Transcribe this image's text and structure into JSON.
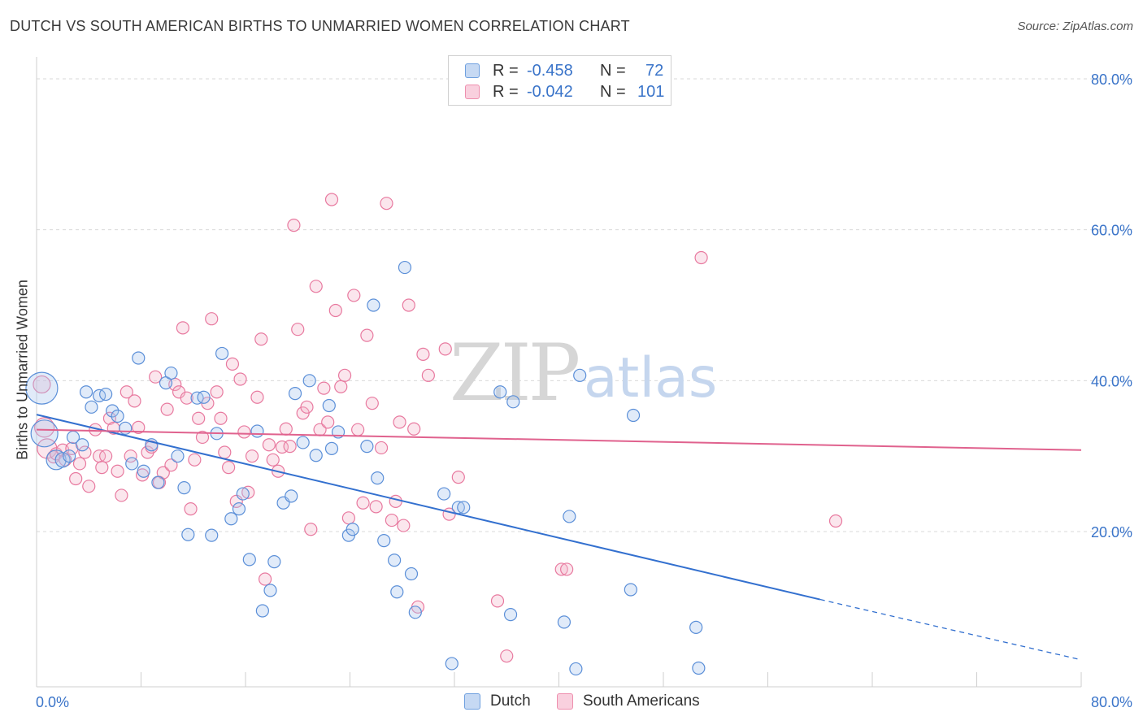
{
  "title": "DUTCH VS SOUTH AMERICAN BIRTHS TO UNMARRIED WOMEN CORRELATION CHART",
  "source": "Source: ZipAtlas.com",
  "watermark": {
    "zip": "ZIP",
    "atlas": "atlas"
  },
  "legend_top": {
    "rows": [
      {
        "r_label": "R =",
        "r_value": "-0.458",
        "n_label": "N =",
        "n_value": "72",
        "color": "#6fa0df"
      },
      {
        "r_label": "R =",
        "r_value": "-0.042",
        "n_label": "N =",
        "n_value": "101",
        "color": "#ee8fae"
      }
    ]
  },
  "legend_bottom": [
    {
      "label": "Dutch",
      "color": "#6fa0df"
    },
    {
      "label": "South Americans",
      "color": "#ee8fae"
    }
  ],
  "colors": {
    "blue": "#4a86d8",
    "pink": "#e8729a",
    "blue_line": "#3370cf",
    "pink_line": "#e0628e",
    "axis_text": "#3a74c9"
  },
  "chart_data": {
    "type": "scatter",
    "title": "DUTCH VS SOUTH AMERICAN BIRTHS TO UNMARRIED WOMEN CORRELATION CHART",
    "xlabel": "",
    "ylabel": "Births to Unmarried Women",
    "xlim": [
      0,
      80
    ],
    "ylim": [
      0,
      82
    ],
    "x_tick_labels": [
      "0.0%",
      "80.0%"
    ],
    "y_ticks": [
      20,
      40,
      60,
      80
    ],
    "y_tick_labels": [
      "20.0%",
      "40.0%",
      "60.0%",
      "80.0%"
    ],
    "grid": true,
    "legend_placement": "top-center",
    "series": [
      {
        "name": "Dutch",
        "color": "#6fa0df",
        "trend": {
          "x0": 0,
          "y0": 35.5,
          "x1": 60,
          "y1": 11.0,
          "dash_to_x": 80,
          "dash_to_y": 3.0
        },
        "points": [
          [
            0.4,
            39.0,
            2.6
          ],
          [
            0.6,
            33.0,
            2.2
          ],
          [
            1.5,
            29.5,
            1.6
          ],
          [
            2.0,
            29.5,
            1.2
          ],
          [
            2.5,
            30.0,
            1.0
          ],
          [
            2.8,
            32.5,
            1.0
          ],
          [
            3.5,
            31.5,
            1.0
          ],
          [
            3.8,
            38.5,
            1.0
          ],
          [
            4.2,
            36.5,
            1.0
          ],
          [
            4.8,
            38.0,
            1.0
          ],
          [
            5.3,
            38.2,
            1.0
          ],
          [
            5.8,
            36.0,
            1.0
          ],
          [
            6.2,
            35.3,
            1.0
          ],
          [
            6.8,
            33.7,
            1.0
          ],
          [
            7.3,
            29.0,
            1.0
          ],
          [
            7.8,
            43.0,
            1.0
          ],
          [
            8.2,
            28.0,
            1.0
          ],
          [
            8.8,
            31.5,
            1.0
          ],
          [
            9.3,
            26.5,
            1.0
          ],
          [
            9.9,
            39.7,
            1.0
          ],
          [
            10.3,
            41.0,
            1.0
          ],
          [
            10.8,
            30.0,
            1.0
          ],
          [
            11.3,
            25.8,
            1.0
          ],
          [
            11.6,
            19.6,
            1.0
          ],
          [
            12.3,
            37.7,
            1.0
          ],
          [
            12.8,
            37.8,
            1.0
          ],
          [
            13.4,
            19.5,
            1.0
          ],
          [
            13.8,
            33.0,
            1.0
          ],
          [
            14.2,
            43.6,
            1.0
          ],
          [
            14.9,
            21.7,
            1.0
          ],
          [
            15.5,
            23.0,
            1.0
          ],
          [
            15.8,
            25.0,
            1.0
          ],
          [
            16.3,
            16.3,
            1.0
          ],
          [
            16.9,
            33.3,
            1.0
          ],
          [
            17.3,
            9.5,
            1.0
          ],
          [
            17.9,
            12.2,
            1.0
          ],
          [
            18.2,
            16.0,
            1.0
          ],
          [
            18.9,
            23.8,
            1.0
          ],
          [
            19.5,
            24.7,
            1.0
          ],
          [
            19.8,
            38.3,
            1.0
          ],
          [
            20.4,
            31.8,
            1.0
          ],
          [
            20.9,
            40.0,
            1.0
          ],
          [
            21.4,
            30.1,
            1.0
          ],
          [
            22.4,
            36.7,
            1.0
          ],
          [
            22.6,
            31.0,
            1.0
          ],
          [
            23.1,
            33.2,
            1.0
          ],
          [
            23.9,
            19.5,
            1.0
          ],
          [
            24.2,
            20.3,
            1.0
          ],
          [
            25.3,
            31.3,
            1.0
          ],
          [
            25.8,
            50.0,
            1.0
          ],
          [
            26.1,
            27.1,
            1.0
          ],
          [
            26.6,
            18.8,
            1.0
          ],
          [
            27.4,
            16.2,
            1.0
          ],
          [
            27.6,
            12.0,
            1.0
          ],
          [
            28.2,
            55.0,
            1.0
          ],
          [
            28.7,
            14.4,
            1.0
          ],
          [
            29.0,
            9.3,
            1.0
          ],
          [
            31.2,
            25.0,
            1.0
          ],
          [
            31.8,
            2.5,
            1.0
          ],
          [
            32.3,
            23.2,
            1.0
          ],
          [
            32.7,
            23.2,
            1.0
          ],
          [
            35.5,
            38.5,
            1.0
          ],
          [
            36.3,
            9.0,
            1.0
          ],
          [
            36.5,
            37.2,
            1.0
          ],
          [
            40.4,
            8.0,
            1.0
          ],
          [
            40.8,
            22.0,
            1.0
          ],
          [
            41.3,
            1.8,
            1.0
          ],
          [
            41.6,
            40.7,
            1.0
          ],
          [
            45.5,
            12.3,
            1.0
          ],
          [
            45.7,
            35.4,
            1.0
          ],
          [
            50.7,
            1.9,
            1.0
          ],
          [
            50.5,
            7.3,
            1.0
          ]
        ]
      },
      {
        "name": "South Americans",
        "color": "#ee8fae",
        "trend": {
          "x0": 0,
          "y0": 33.5,
          "x1": 80,
          "y1": 30.8
        },
        "points": [
          [
            0.4,
            39.5,
            1.4
          ],
          [
            0.6,
            33.8,
            1.6
          ],
          [
            0.8,
            31.0,
            1.6
          ],
          [
            1.3,
            29.9,
            1.0
          ],
          [
            1.5,
            30.3,
            1.0
          ],
          [
            2.0,
            30.8,
            1.0
          ],
          [
            2.2,
            29.5,
            1.0
          ],
          [
            2.7,
            31.0,
            1.0
          ],
          [
            3.0,
            27.0,
            1.0
          ],
          [
            3.3,
            29.0,
            1.0
          ],
          [
            3.7,
            30.5,
            1.0
          ],
          [
            4.0,
            26.0,
            1.0
          ],
          [
            4.5,
            33.5,
            1.0
          ],
          [
            4.8,
            30.0,
            1.0
          ],
          [
            5.0,
            28.5,
            1.0
          ],
          [
            5.3,
            30.0,
            1.0
          ],
          [
            5.6,
            35.0,
            1.0
          ],
          [
            5.9,
            33.7,
            1.0
          ],
          [
            6.2,
            28.0,
            1.0
          ],
          [
            6.5,
            24.8,
            1.0
          ],
          [
            6.9,
            38.5,
            1.0
          ],
          [
            7.2,
            30.0,
            1.0
          ],
          [
            7.5,
            37.3,
            1.0
          ],
          [
            7.8,
            33.8,
            1.0
          ],
          [
            8.1,
            27.5,
            1.0
          ],
          [
            8.5,
            30.5,
            1.0
          ],
          [
            8.8,
            31.2,
            1.0
          ],
          [
            9.1,
            40.5,
            1.0
          ],
          [
            9.4,
            26.5,
            1.0
          ],
          [
            9.7,
            27.8,
            1.0
          ],
          [
            10.0,
            36.2,
            1.0
          ],
          [
            10.3,
            28.8,
            1.0
          ],
          [
            10.6,
            39.5,
            1.0
          ],
          [
            10.9,
            38.5,
            1.0
          ],
          [
            11.2,
            47.0,
            1.0
          ],
          [
            11.5,
            37.7,
            1.0
          ],
          [
            11.8,
            23.0,
            1.0
          ],
          [
            12.1,
            29.5,
            1.0
          ],
          [
            12.4,
            35.0,
            1.0
          ],
          [
            12.7,
            32.5,
            1.0
          ],
          [
            13.1,
            37.0,
            1.0
          ],
          [
            13.4,
            48.2,
            1.0
          ],
          [
            13.8,
            38.5,
            1.0
          ],
          [
            14.1,
            35.0,
            1.0
          ],
          [
            14.4,
            30.5,
            1.0
          ],
          [
            14.7,
            28.5,
            1.0
          ],
          [
            15.0,
            42.2,
            1.0
          ],
          [
            15.3,
            24.0,
            1.0
          ],
          [
            15.6,
            40.2,
            1.0
          ],
          [
            15.9,
            33.2,
            1.0
          ],
          [
            16.2,
            25.2,
            1.0
          ],
          [
            16.5,
            30.0,
            1.0
          ],
          [
            16.9,
            37.8,
            1.0
          ],
          [
            17.2,
            45.5,
            1.0
          ],
          [
            17.5,
            13.7,
            1.0
          ],
          [
            17.8,
            31.5,
            1.0
          ],
          [
            18.1,
            29.5,
            1.0
          ],
          [
            18.5,
            28.0,
            1.0
          ],
          [
            18.8,
            31.2,
            1.0
          ],
          [
            19.1,
            33.6,
            1.0
          ],
          [
            19.4,
            31.3,
            1.0
          ],
          [
            19.7,
            60.6,
            1.0
          ],
          [
            20.0,
            46.8,
            1.0
          ],
          [
            20.4,
            35.7,
            1.0
          ],
          [
            20.7,
            36.5,
            1.0
          ],
          [
            21.0,
            20.3,
            1.0
          ],
          [
            21.4,
            52.5,
            1.0
          ],
          [
            21.7,
            33.5,
            1.0
          ],
          [
            22.0,
            39.0,
            1.0
          ],
          [
            22.3,
            34.5,
            1.0
          ],
          [
            22.6,
            64.0,
            1.0
          ],
          [
            22.9,
            49.3,
            1.0
          ],
          [
            23.3,
            39.2,
            1.0
          ],
          [
            23.6,
            40.7,
            1.0
          ],
          [
            23.9,
            21.8,
            1.0
          ],
          [
            24.3,
            51.3,
            1.0
          ],
          [
            24.6,
            33.5,
            1.0
          ],
          [
            25.0,
            23.8,
            1.0
          ],
          [
            25.3,
            46.0,
            1.0
          ],
          [
            25.7,
            37.0,
            1.0
          ],
          [
            26.0,
            23.3,
            1.0
          ],
          [
            26.4,
            31.1,
            1.0
          ],
          [
            26.8,
            63.5,
            1.0
          ],
          [
            27.2,
            21.5,
            1.0
          ],
          [
            27.5,
            24.0,
            1.0
          ],
          [
            27.8,
            34.5,
            1.0
          ],
          [
            28.1,
            20.8,
            1.0
          ],
          [
            28.5,
            50.0,
            1.0
          ],
          [
            28.9,
            33.6,
            1.0
          ],
          [
            29.2,
            10.0,
            1.0
          ],
          [
            29.6,
            43.5,
            1.0
          ],
          [
            30.0,
            40.7,
            1.0
          ],
          [
            31.3,
            44.2,
            1.0
          ],
          [
            31.6,
            22.3,
            1.0
          ],
          [
            32.3,
            27.2,
            1.0
          ],
          [
            35.3,
            10.8,
            1.0
          ],
          [
            36.0,
            3.5,
            1.0
          ],
          [
            40.2,
            15.0,
            1.0
          ],
          [
            40.6,
            15.0,
            1.0
          ],
          [
            50.9,
            56.3,
            1.0
          ],
          [
            61.2,
            21.4,
            1.0
          ]
        ]
      }
    ]
  }
}
